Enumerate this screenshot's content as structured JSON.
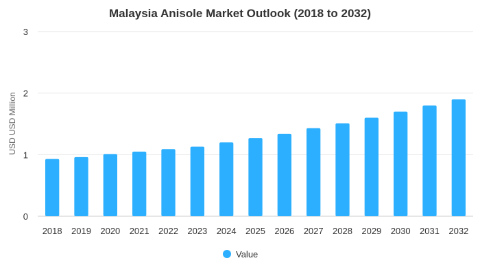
{
  "chart_data": {
    "type": "bar",
    "title": "Malaysia Anisole Market Outlook (2018 to 2032)",
    "xlabel": "",
    "ylabel": "USD USD Million",
    "ylim": [
      0,
      3
    ],
    "yticks": [
      0,
      1,
      2,
      3
    ],
    "grid": true,
    "legend_position": "bottom-center",
    "categories": [
      "2018",
      "2019",
      "2020",
      "2021",
      "2022",
      "2023",
      "2024",
      "2025",
      "2026",
      "2027",
      "2028",
      "2029",
      "2030",
      "2031",
      "2032"
    ],
    "series": [
      {
        "name": "Value",
        "color": "#2caffe",
        "values": [
          0.93,
          0.96,
          1.01,
          1.05,
          1.09,
          1.13,
          1.2,
          1.27,
          1.34,
          1.43,
          1.51,
          1.6,
          1.7,
          1.8,
          1.9
        ]
      }
    ]
  }
}
